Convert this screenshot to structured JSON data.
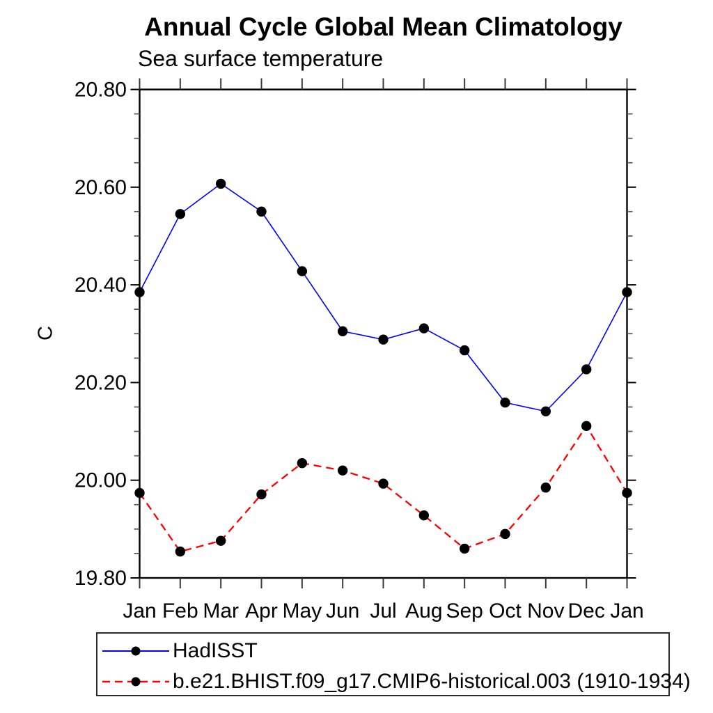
{
  "page": {
    "background": "#ffffff"
  },
  "chart_data": {
    "type": "line",
    "title": "Annual Cycle Global Mean Climatology",
    "subtitle": "Sea surface temperature",
    "ylabel": "C",
    "xlabel": "",
    "categories": [
      "Jan",
      "Feb",
      "Mar",
      "Apr",
      "May",
      "Jun",
      "Jul",
      "Aug",
      "Sep",
      "Oct",
      "Nov",
      "Dec",
      "Jan"
    ],
    "series": [
      {
        "name": "HadISST",
        "color": "#0000ff",
        "line_style": "solid",
        "marker": "filled-circle",
        "marker_color": "#000000",
        "values": [
          20.385,
          20.545,
          20.607,
          20.55,
          20.428,
          20.305,
          20.288,
          20.311,
          20.266,
          20.159,
          20.141,
          20.227,
          20.385
        ]
      },
      {
        "name": "b.e21.BHIST.f09_g17.CMIP6-historical.003 (1910-1934)",
        "color": "#ff0000",
        "line_style": "dashed",
        "marker": "filled-circle",
        "marker_color": "#000000",
        "values": [
          19.974,
          19.854,
          19.876,
          19.971,
          20.035,
          20.02,
          19.993,
          19.928,
          19.86,
          19.89,
          19.985,
          20.111,
          19.974
        ]
      }
    ],
    "ylim": [
      19.8,
      20.8
    ],
    "ytick_step": 0.2,
    "yminor_step": 0.05,
    "ytick_labels": [
      "19.80",
      "20.00",
      "20.20",
      "20.40",
      "20.60",
      "20.80"
    ],
    "grid": false,
    "legend_position": "bottom-left",
    "frame_color": "#000000",
    "tick_color": "#3a3a3a"
  }
}
